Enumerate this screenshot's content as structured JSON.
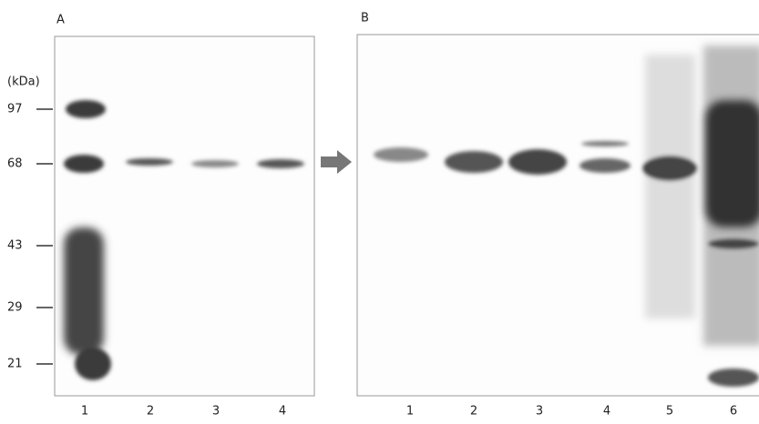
{
  "panels": [
    {
      "label": "A",
      "unit": "(kDa)",
      "markers": [
        "97",
        "68",
        "43",
        "29",
        "21"
      ],
      "lanes": [
        "1",
        "2",
        "3",
        "4"
      ]
    },
    {
      "label": "B",
      "lanes": [
        "1",
        "2",
        "3",
        "4",
        "5",
        "6"
      ]
    }
  ]
}
